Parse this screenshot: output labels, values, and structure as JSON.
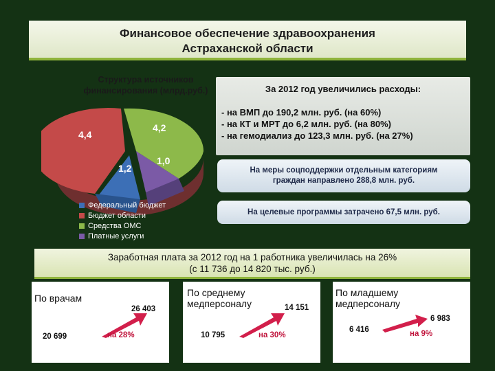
{
  "title": {
    "line1": "Финансовое обеспечение здравоохранения",
    "line2": "Астраханской области"
  },
  "pie": {
    "title_line1": "Структура источников",
    "title_line2": "финансирования (млрд.руб.)",
    "slices": [
      {
        "label": "4,2",
        "value": 4.2,
        "color": "#8db94a"
      },
      {
        "label": "1,0",
        "value": 1.0,
        "color": "#7b5aa6"
      },
      {
        "label": "1,2",
        "value": 1.2,
        "color": "#3c6fb6"
      },
      {
        "label": "4,4",
        "value": 4.4,
        "color": "#c44a49"
      }
    ],
    "legend": [
      {
        "label": "Федеральный бюджет",
        "color": "#3c6fb6"
      },
      {
        "label": "Бюджет области",
        "color": "#c44a49"
      },
      {
        "label": "Средства ОМС",
        "color": "#8db94a"
      },
      {
        "label": "Платные услуги",
        "color": "#7b5aa6"
      }
    ]
  },
  "expenses": {
    "head": "За 2012 год увеличились расходы:",
    "lines": [
      "- на ВМП до 190,2 млн. руб. (на 60%)",
      "- на КТ и МРТ до 6,2 млн. руб. (на 80%)",
      "- на гемодиализ до 123,3 млн. руб. (на 27%)"
    ]
  },
  "social": {
    "line1": "На меры соцподдержки отдельным категориям",
    "line2": "граждан направлено 288,8 млн. руб."
  },
  "programs": {
    "text": "На целевые программы затрачено 67,5 млн. руб."
  },
  "salary": {
    "line1": "Заработная плата за 2012 год на 1 работника увеличилась на 26%",
    "line2": "(с 11 736 до 14 820 тыс. руб.)"
  },
  "panels": [
    {
      "head": "По врачам",
      "from": "20 699",
      "to": "26 403",
      "pct": "на 28%"
    },
    {
      "head1": "По среднему",
      "head2": "медперсоналу",
      "from": "10 795",
      "to": "14 151",
      "pct": "на 30%"
    },
    {
      "head1": "По младшему",
      "head2": "медперсоналу",
      "from": "6 416",
      "to": "6 983",
      "pct": "на 9%"
    }
  ]
}
